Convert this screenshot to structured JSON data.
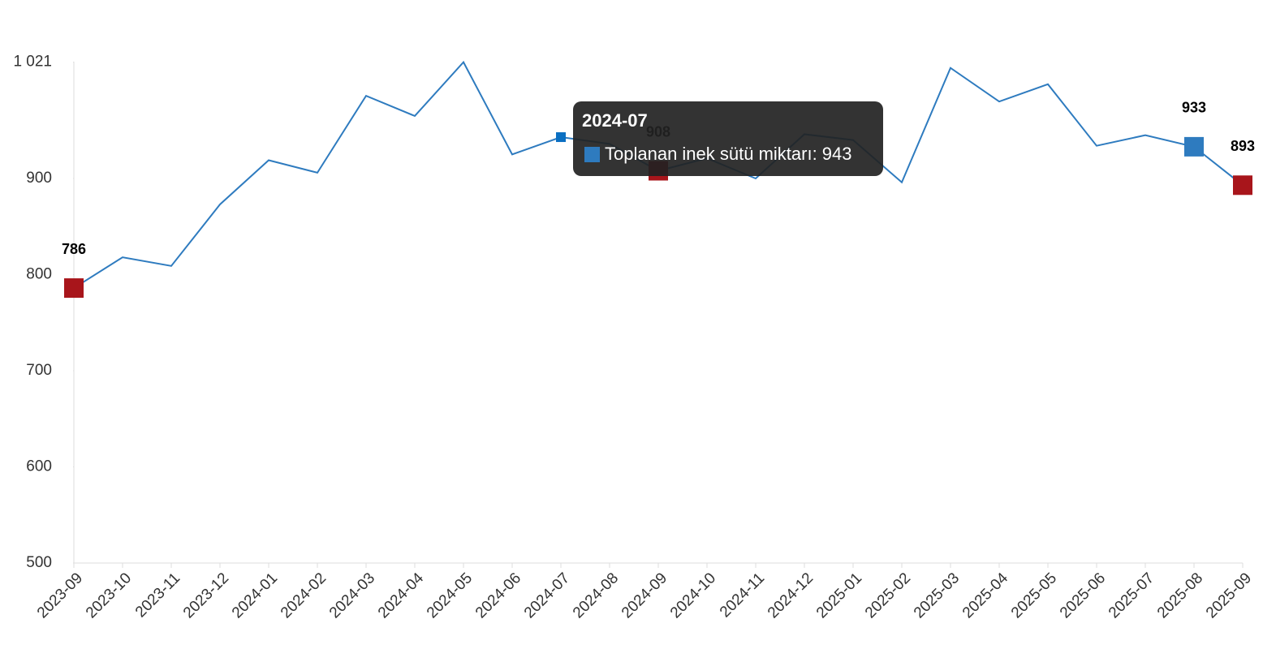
{
  "chart_data": {
    "type": "line",
    "categories": [
      "2023-09",
      "2023-10",
      "2023-11",
      "2023-12",
      "2024-01",
      "2024-02",
      "2024-03",
      "2024-04",
      "2024-05",
      "2024-06",
      "2024-07",
      "2024-08",
      "2024-09",
      "2024-10",
      "2024-11",
      "2024-12",
      "2025-01",
      "2025-02",
      "2025-03",
      "2025-04",
      "2025-05",
      "2025-06",
      "2025-07",
      "2025-08",
      "2025-09"
    ],
    "series": [
      {
        "name": "Toplanan inek sütü miktarı",
        "color": "#2e7bbf",
        "values": [
          786,
          818,
          809,
          873,
          919,
          906,
          986,
          965,
          1021,
          925,
          943,
          936,
          908,
          921,
          900,
          946,
          940,
          896,
          1015,
          980,
          998,
          934,
          945,
          933,
          893
        ],
        "marker_colors": [
          "#a8151b",
          null,
          null,
          null,
          null,
          null,
          null,
          null,
          null,
          null,
          null,
          null,
          "#a8151b",
          null,
          null,
          null,
          null,
          null,
          null,
          null,
          null,
          null,
          null,
          "#2e7bbf",
          "#a8151b"
        ]
      }
    ],
    "ylim": [
      500,
      1021
    ],
    "yticks": [
      500,
      600,
      700,
      800,
      900,
      {
        "value": 1021,
        "label": "1 021"
      }
    ],
    "tooltip": {
      "title": "2024-07",
      "text": "Toplanan inek sütü miktarı: 943",
      "color": "#2e7bbf"
    }
  }
}
